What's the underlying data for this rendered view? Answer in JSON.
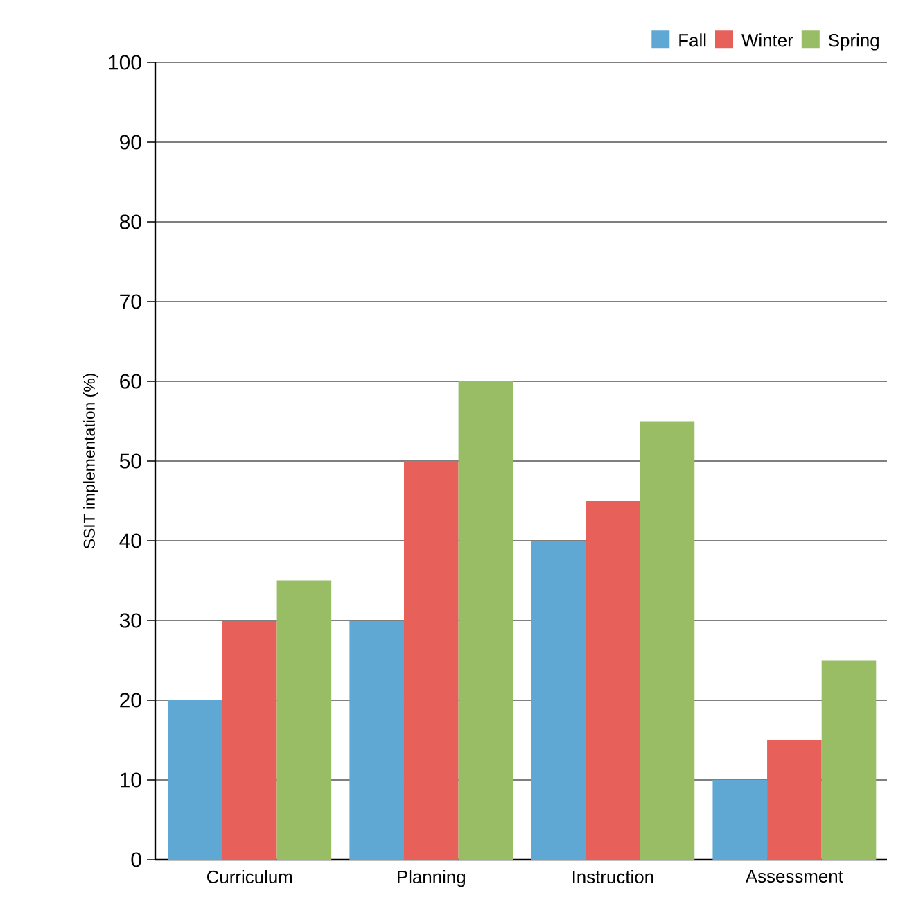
{
  "chart_data": {
    "type": "bar",
    "ylabel": "SSIT implementation (%)",
    "categories": [
      "Curriculum",
      "Planning",
      "Instruction",
      "Assessment"
    ],
    "series": [
      {
        "name": "Fall",
        "color": "#5fa8d3",
        "values": [
          20,
          30,
          40,
          10
        ]
      },
      {
        "name": "Winter",
        "color": "#e8605a",
        "values": [
          30,
          50,
          45,
          15
        ]
      },
      {
        "name": "Spring",
        "color": "#98bd65",
        "values": [
          35,
          60,
          55,
          25
        ]
      }
    ],
    "ylim": [
      0,
      100
    ],
    "yticks": [
      0,
      10,
      20,
      30,
      40,
      50,
      60,
      70,
      80,
      90,
      100
    ],
    "grid": "y",
    "legend": "top right"
  }
}
